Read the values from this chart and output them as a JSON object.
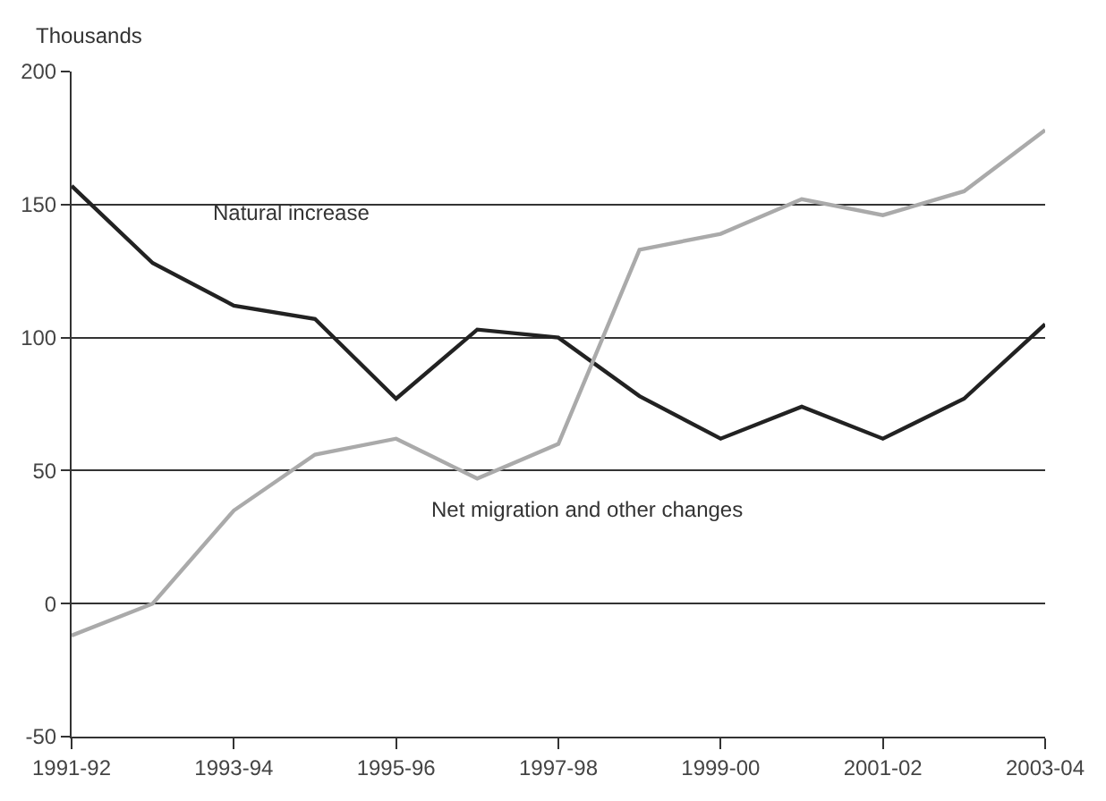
{
  "chart_data": {
    "type": "line",
    "ylabel": "Thousands",
    "categories": [
      "1991-92",
      null,
      "1993-94",
      null,
      "1995-96",
      null,
      "1997-98",
      null,
      "1999-00",
      null,
      "2001-02",
      null,
      "2003-04"
    ],
    "series": [
      {
        "name": "Natural increase",
        "color": "#222222",
        "values": [
          157,
          128,
          112,
          107,
          77,
          103,
          100,
          78,
          62,
          74,
          62,
          77,
          105
        ]
      },
      {
        "name": "Net migration and other changes",
        "color": "#aaaaaa",
        "values": [
          -12,
          0,
          35,
          56,
          62,
          47,
          60,
          133,
          139,
          152,
          146,
          155,
          178
        ]
      }
    ],
    "ylim": [
      -50,
      200
    ],
    "yticks": [
      -50,
      0,
      50,
      100,
      150,
      200
    ],
    "grid": "y",
    "legend": false,
    "marker": "none",
    "line_style": "solid"
  }
}
